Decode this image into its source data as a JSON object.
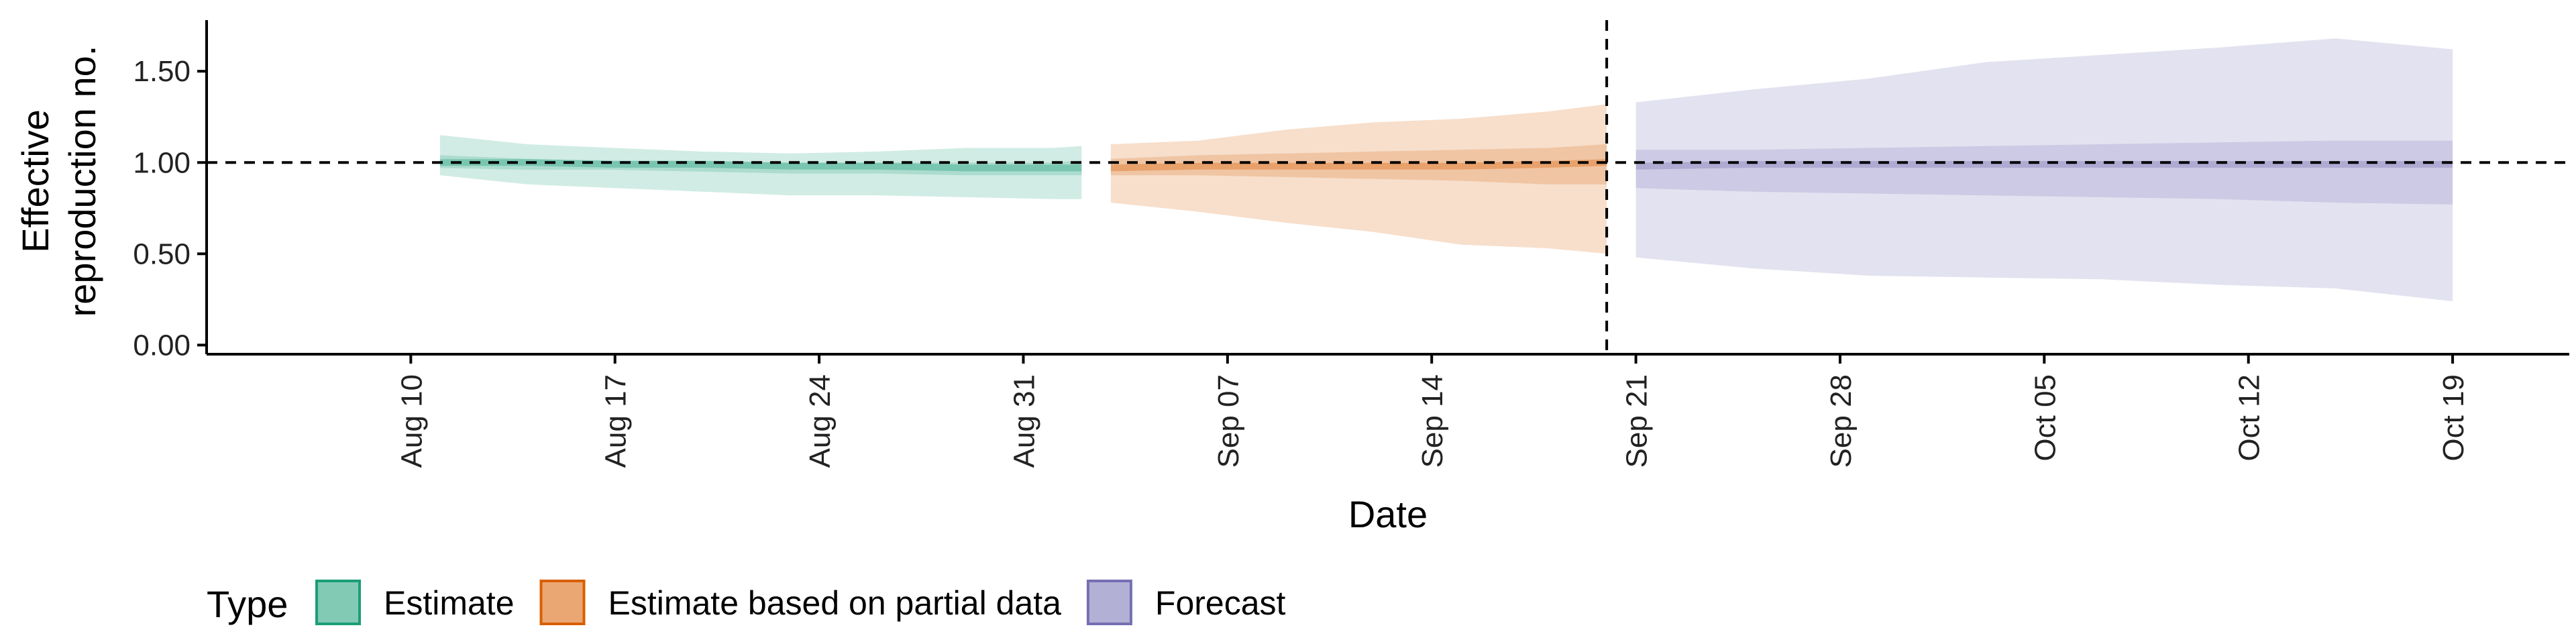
{
  "chart_data": {
    "type": "area",
    "xlabel": "Date",
    "ylabel_lines": [
      "Effective",
      "reproduction no."
    ],
    "x_ticks": [
      "Aug 10",
      "Aug 17",
      "Aug 24",
      "Aug 31",
      "Sep 07",
      "Sep 14",
      "Sep 21",
      "Sep 28",
      "Oct 05",
      "Oct 12",
      "Oct 19"
    ],
    "y_ticks": [
      "0.00",
      "0.50",
      "1.00",
      "1.50"
    ],
    "ylim": [
      -0.05,
      1.78
    ],
    "xlim": [
      "2020-08-03",
      "2020-10-23"
    ],
    "reference_line_y": 1.0,
    "reference_line_date": "2020-09-20",
    "legend": {
      "title": "Type",
      "position": "bottom",
      "items": [
        {
          "label": "Estimate",
          "color": "#1b9e77"
        },
        {
          "label": "Estimate based on partial data",
          "color": "#d95f02"
        },
        {
          "label": "Forecast",
          "color": "#7570b3"
        }
      ]
    },
    "series": [
      {
        "type": "Estimate",
        "color": "#1b9e77",
        "dates": [
          "2020-08-11",
          "2020-08-14",
          "2020-08-17",
          "2020-08-20",
          "2020-08-23",
          "2020-08-26",
          "2020-08-29",
          "2020-09-01",
          "2020-09-02"
        ],
        "median": [
          1.0,
          1.0,
          0.99,
          0.99,
          0.98,
          0.98,
          0.97,
          0.97,
          0.97
        ],
        "inner": [
          [
            0.97,
            1.04
          ],
          [
            0.96,
            1.02
          ],
          [
            0.96,
            1.01
          ],
          [
            0.95,
            1.01
          ],
          [
            0.94,
            1.0
          ],
          [
            0.94,
            1.0
          ],
          [
            0.93,
            1.0
          ],
          [
            0.93,
            1.0
          ],
          [
            0.93,
            1.01
          ]
        ],
        "outer": [
          [
            0.93,
            1.15
          ],
          [
            0.88,
            1.1
          ],
          [
            0.86,
            1.08
          ],
          [
            0.84,
            1.06
          ],
          [
            0.82,
            1.05
          ],
          [
            0.82,
            1.06
          ],
          [
            0.81,
            1.08
          ],
          [
            0.8,
            1.08
          ],
          [
            0.8,
            1.09
          ]
        ]
      },
      {
        "type": "Estimate based on partial data",
        "color": "#d95f02",
        "dates": [
          "2020-09-03",
          "2020-09-06",
          "2020-09-09",
          "2020-09-12",
          "2020-09-15",
          "2020-09-18",
          "2020-09-20"
        ],
        "median": [
          0.97,
          0.98,
          0.98,
          0.98,
          0.98,
          0.99,
          1.0
        ],
        "inner": [
          [
            0.93,
            1.02
          ],
          [
            0.93,
            1.04
          ],
          [
            0.92,
            1.05
          ],
          [
            0.91,
            1.06
          ],
          [
            0.9,
            1.07
          ],
          [
            0.88,
            1.08
          ],
          [
            0.88,
            1.1
          ]
        ],
        "outer": [
          [
            0.78,
            1.1
          ],
          [
            0.73,
            1.12
          ],
          [
            0.67,
            1.18
          ],
          [
            0.62,
            1.22
          ],
          [
            0.55,
            1.24
          ],
          [
            0.53,
            1.28
          ],
          [
            0.5,
            1.32
          ]
        ]
      },
      {
        "type": "Forecast",
        "color": "#7570b3",
        "dates": [
          "2020-09-21",
          "2020-09-25",
          "2020-09-29",
          "2020-10-03",
          "2020-10-07",
          "2020-10-11",
          "2020-10-15",
          "2020-10-19"
        ],
        "median": [
          0.98,
          0.99,
          0.99,
          0.99,
          0.99,
          0.99,
          0.99,
          0.99
        ],
        "inner": [
          [
            0.86,
            1.07
          ],
          [
            0.84,
            1.07
          ],
          [
            0.83,
            1.08
          ],
          [
            0.82,
            1.09
          ],
          [
            0.81,
            1.1
          ],
          [
            0.8,
            1.11
          ],
          [
            0.78,
            1.12
          ],
          [
            0.77,
            1.12
          ]
        ],
        "outer": [
          [
            0.48,
            1.33
          ],
          [
            0.42,
            1.4
          ],
          [
            0.38,
            1.46
          ],
          [
            0.37,
            1.55
          ],
          [
            0.36,
            1.59
          ],
          [
            0.33,
            1.63
          ],
          [
            0.31,
            1.68
          ],
          [
            0.24,
            1.62
          ]
        ]
      }
    ]
  }
}
